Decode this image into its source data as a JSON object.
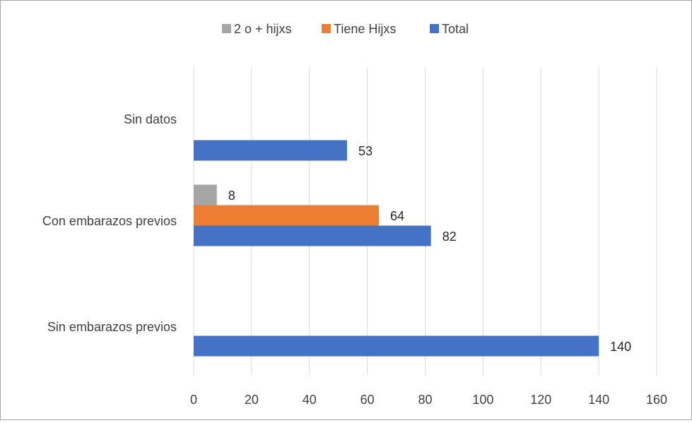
{
  "chart_data": {
    "type": "bar",
    "orientation": "horizontal",
    "categories": [
      "Sin datos",
      "Con embarazos previos",
      "Sin embarazos previos"
    ],
    "series": [
      {
        "name": "2 o + hijxs",
        "color": "#a5a5a5",
        "values": [
          null,
          8,
          null
        ]
      },
      {
        "name": "Tiene Hijxs",
        "color": "#ed7d31",
        "values": [
          null,
          64,
          null
        ]
      },
      {
        "name": "Total",
        "color": "#4472c4",
        "values": [
          53,
          82,
          140
        ]
      }
    ],
    "xlim": [
      0,
      160
    ],
    "xticks": [
      0,
      20,
      40,
      60,
      80,
      100,
      120,
      140,
      160
    ],
    "grid": "vertical",
    "legend_position": "top"
  }
}
